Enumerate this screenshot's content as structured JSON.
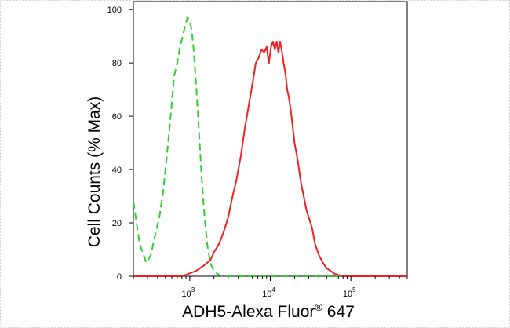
{
  "chart_data": {
    "type": "line",
    "title": "",
    "xlabel": {
      "main": "ADH5-Alexa Fluor",
      "superscript": "®",
      "suffix": " 647"
    },
    "ylabel": "Cell Counts (% Max)",
    "x_scale": "log",
    "xlim": [
      200,
      500000
    ],
    "ylim": [
      0,
      103
    ],
    "grid": false,
    "legend": "none",
    "y_ticks": [
      0,
      20,
      40,
      60,
      80,
      100
    ],
    "y_tick_labels": [
      "0",
      "20",
      "40",
      "60",
      "80",
      "100"
    ],
    "x_ticks": [
      {
        "base": "10",
        "exp": "3",
        "value": 1000
      },
      {
        "base": "10",
        "exp": "4",
        "value": 10000
      },
      {
        "base": "10",
        "exp": "5",
        "value": 100000
      }
    ],
    "series": [
      {
        "color": "#33cc33",
        "dash": "dashed",
        "x": [
          200,
          240,
          290,
          330,
          370,
          420,
          470,
          520,
          580,
          640,
          700,
          760,
          820,
          880,
          940,
          1000,
          1060,
          1120,
          1200,
          1300,
          1400,
          1500,
          1650,
          1800,
          2000,
          2300,
          2700,
          3500,
          5000,
          10000,
          30000,
          100000,
          300000,
          500000
        ],
        "y": [
          28,
          12,
          5,
          8,
          15,
          22,
          32,
          45,
          60,
          75,
          80,
          86,
          90,
          94,
          97,
          96,
          92,
          85,
          72,
          55,
          38,
          25,
          12,
          5,
          2,
          0.5,
          0,
          0,
          0,
          0,
          0,
          0,
          0,
          0
        ]
      },
      {
        "color": "#ee2222",
        "dash": "solid",
        "x": [
          200,
          800,
          1200,
          1500,
          1800,
          2000,
          2300,
          2600,
          3000,
          3400,
          3800,
          4300,
          4800,
          5400,
          6000,
          6600,
          7200,
          7800,
          8400,
          9000,
          9600,
          10200,
          10800,
          11400,
          12000,
          12600,
          13200,
          13800,
          14600,
          15400,
          16200,
          17000,
          18000,
          19000,
          20000,
          22000,
          24000,
          26000,
          28000,
          30000,
          33000,
          36000,
          40000,
          45000,
          50000,
          56000,
          62000,
          70000,
          80000,
          100000,
          200000,
          500000
        ],
        "y": [
          0,
          0,
          2,
          4,
          6,
          9,
          12,
          16,
          22,
          30,
          36,
          45,
          55,
          64,
          72,
          80,
          82,
          85,
          84,
          86,
          80,
          86,
          88,
          85,
          88,
          84,
          88,
          85,
          80,
          76,
          70,
          67,
          62,
          56,
          50,
          43,
          35,
          30,
          25,
          22,
          18,
          12,
          8,
          5,
          3,
          2,
          1,
          0.5,
          0,
          0,
          0,
          0
        ]
      }
    ]
  }
}
